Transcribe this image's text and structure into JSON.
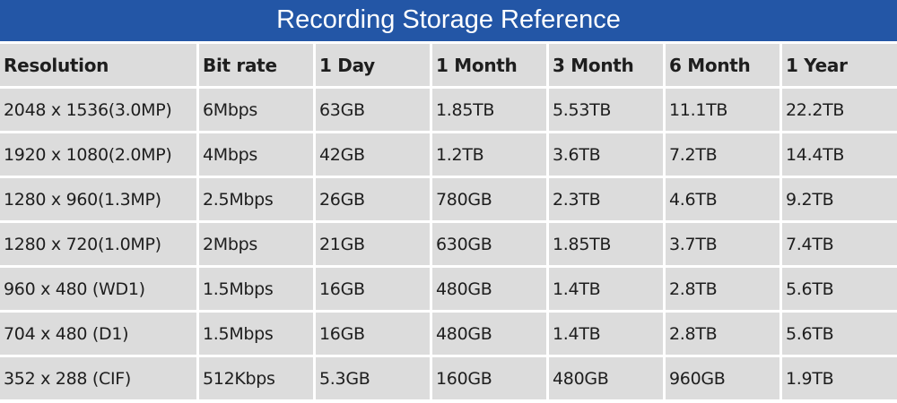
{
  "title": "Recording Storage Reference",
  "columns": [
    "Resolution",
    "Bit rate",
    "1 Day",
    "1 Month",
    "3 Month",
    "6 Month",
    "1 Year"
  ],
  "rows": [
    [
      "2048 x 1536(3.0MP)",
      "6Mbps",
      "63GB",
      "1.85TB",
      "5.53TB",
      "11.1TB",
      "22.2TB"
    ],
    [
      "1920 x 1080(2.0MP)",
      "4Mbps",
      "42GB",
      "1.2TB",
      "3.6TB",
      "7.2TB",
      "14.4TB"
    ],
    [
      "1280 x 960(1.3MP)",
      "2.5Mbps",
      "26GB",
      "780GB",
      "2.3TB",
      "4.6TB",
      "9.2TB"
    ],
    [
      "1280 x 720(1.0MP)",
      "2Mbps",
      "21GB",
      "630GB",
      "1.85TB",
      "3.7TB",
      "7.4TB"
    ],
    [
      "960 x 480 (WD1)",
      "1.5Mbps",
      "16GB",
      "480GB",
      "1.4TB",
      "2.8TB",
      "5.6TB"
    ],
    [
      "704 x 480 (D1)",
      "1.5Mbps",
      "16GB",
      "480GB",
      "1.4TB",
      "2.8TB",
      "5.6TB"
    ],
    [
      "352 x 288 (CIF)",
      "512Kbps",
      "5.3GB",
      "160GB",
      "480GB",
      "960GB",
      "1.9TB"
    ]
  ]
}
